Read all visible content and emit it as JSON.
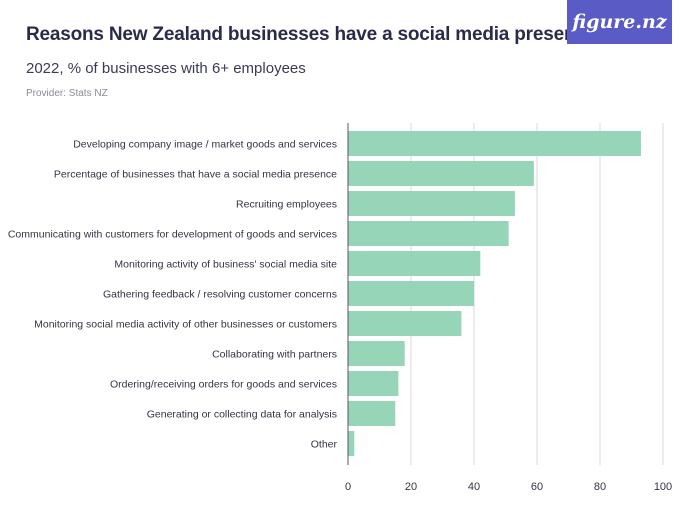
{
  "header": {
    "title": "Reasons New Zealand businesses have a social media presence",
    "subtitle": "2022, % of businesses with 6+ employees",
    "provider": "Provider: Stats NZ",
    "logo_text": "figure.nz"
  },
  "colors": {
    "bar": "#96d5b8",
    "grid": "#d9d9e0",
    "axis": "#555566",
    "logo_bg": "#5a5bc4"
  },
  "chart_data": {
    "type": "bar",
    "orientation": "horizontal",
    "categories": [
      "Developing company image / market goods and services",
      "Percentage of businesses that have a social media presence",
      "Recruiting employees",
      "Communicating with customers for development of goods and services",
      "Monitoring activity of business' social media site",
      "Gathering feedback / resolving customer concerns",
      "Monitoring social media activity of other businesses or customers",
      "Collaborating with partners",
      "Ordering/receiving orders for goods and services",
      "Generating or collecting data for analysis",
      "Other"
    ],
    "values": [
      93,
      59,
      53,
      51,
      42,
      40,
      36,
      18,
      16,
      15,
      2
    ],
    "xlim": [
      0,
      100
    ],
    "xticks": [
      0,
      20,
      40,
      60,
      80,
      100
    ],
    "grid": true
  }
}
